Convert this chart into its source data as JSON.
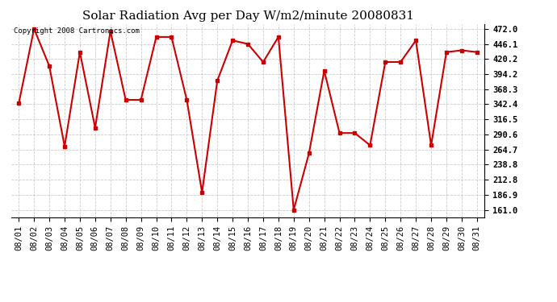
{
  "title": "Solar Radiation Avg per Day W/m2/minute 20080831",
  "copyright": "Copyright 2008 Cartronics.com",
  "dates": [
    "08/01",
    "08/02",
    "08/03",
    "08/04",
    "08/05",
    "08/06",
    "08/07",
    "08/08",
    "08/09",
    "08/10",
    "08/11",
    "08/12",
    "08/13",
    "08/14",
    "08/15",
    "08/16",
    "08/17",
    "08/18",
    "08/19",
    "08/20",
    "08/21",
    "08/22",
    "08/23",
    "08/24",
    "08/25",
    "08/26",
    "08/27",
    "08/28",
    "08/29",
    "08/30",
    "08/31"
  ],
  "values": [
    344,
    472,
    408,
    270,
    432,
    302,
    468,
    350,
    350,
    458,
    458,
    350,
    191,
    383,
    452,
    446,
    415,
    458,
    161,
    258,
    400,
    293,
    293,
    272,
    415,
    415,
    452,
    272,
    432,
    435,
    432
  ],
  "line_color": "#cc0000",
  "marker": "s",
  "marker_size": 2.5,
  "line_width": 1.5,
  "bg_color": "#ffffff",
  "grid_color": "#cccccc",
  "yticks": [
    161.0,
    186.9,
    212.8,
    238.8,
    264.7,
    290.6,
    316.5,
    342.4,
    368.3,
    394.2,
    420.2,
    446.1,
    472.0
  ],
  "ylim": [
    148,
    480
  ],
  "title_fontsize": 11,
  "tick_fontsize": 7.5,
  "copyright_fontsize": 6.5,
  "figwidth": 6.9,
  "figheight": 3.75,
  "dpi": 100
}
